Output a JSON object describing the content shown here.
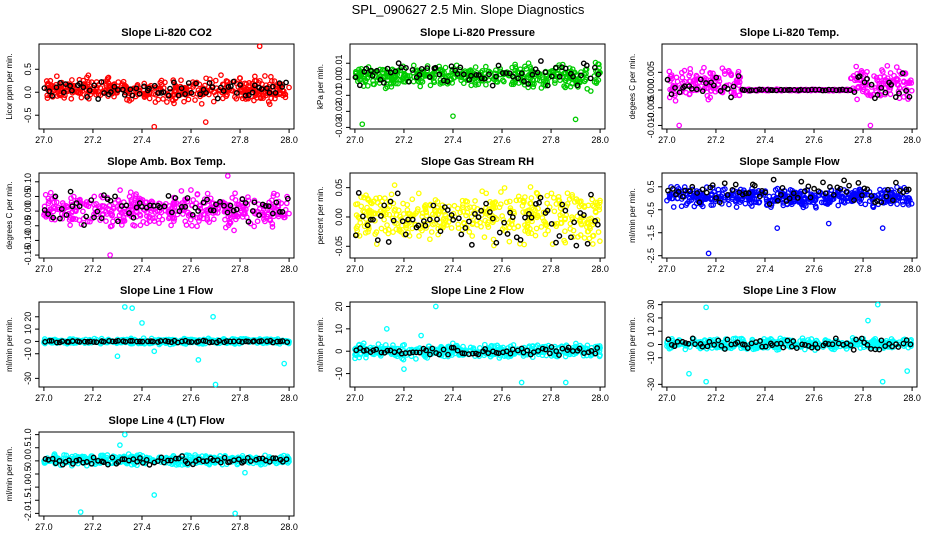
{
  "figure_title": "SPL_090627  2.5 Min. Slope Diagnostics",
  "colors": {
    "series_overlay": "#000000",
    "red": "#ff0000",
    "green": "#00cc00",
    "magenta": "#ff00ff",
    "yellow": "#ffff00",
    "blue": "#0000ff",
    "cyan": "#00ffff"
  },
  "chart_data": [
    {
      "type": "scatter",
      "title": "Slope Li-820 CO2",
      "ylabel": "Licor ppm per min.",
      "color": "#ff0000",
      "xlim": [
        26.98,
        28.02
      ],
      "ylim": [
        -0.8,
        1.05
      ],
      "xticks": [
        "27.0",
        "27.2",
        "27.4",
        "27.6",
        "27.8",
        "28.0"
      ],
      "yticks": [
        "-0.5",
        "0.0",
        "0.5"
      ],
      "ytick_values": [
        -0.5,
        0,
        0.5
      ],
      "band": [
        -0.3,
        0.4
      ],
      "overlay_band": [
        -0.2,
        0.3
      ],
      "outliers": [
        [
          27.45,
          -0.75
        ],
        [
          27.66,
          -0.65
        ],
        [
          27.88,
          1.0
        ]
      ]
    },
    {
      "type": "scatter",
      "title": "Slope Li-820 Pressure",
      "ylabel": "kPa per min.",
      "color": "#00cc00",
      "xlim": [
        26.98,
        28.02
      ],
      "ylim": [
        -0.031,
        0.022
      ],
      "xticks": [
        "27.0",
        "27.2",
        "27.4",
        "27.6",
        "27.8",
        "28.0"
      ],
      "yticks": [
        "-0.03",
        "-0.02",
        "-0.01",
        "0.00",
        "0.01"
      ],
      "ytick_values": [
        -0.03,
        -0.02,
        -0.01,
        0,
        0.01
      ],
      "band": [
        -0.008,
        0.012
      ],
      "overlay_band": [
        -0.005,
        0.012
      ],
      "outliers": [
        [
          27.03,
          -0.028
        ],
        [
          27.4,
          -0.023
        ],
        [
          27.9,
          -0.025
        ]
      ]
    },
    {
      "type": "scatter",
      "title": "Slope Li-820 Temp.",
      "ylabel": "degees C per min.",
      "color": "#ff00ff",
      "xlim": [
        26.98,
        28.02
      ],
      "ylim": [
        -0.011,
        0.013
      ],
      "xticks": [
        "27.0",
        "27.2",
        "27.4",
        "27.6",
        "27.8",
        "28.0"
      ],
      "yticks": [
        "-0.010",
        "-0.005",
        "0.000",
        "0.005"
      ],
      "ytick_values": [
        -0.01,
        -0.005,
        0,
        0.005
      ],
      "band": [
        -0.004,
        0.008
      ],
      "overlay_band": [
        -0.003,
        0.006
      ],
      "flat_range": [
        27.3,
        27.75
      ],
      "outliers": [
        [
          27.05,
          -0.01
        ],
        [
          27.83,
          -0.01
        ]
      ]
    },
    {
      "type": "scatter",
      "title": "Slope Amb. Box Temp.",
      "ylabel": "degrees C per min.",
      "color": "#ff00ff",
      "xlim": [
        26.98,
        28.02
      ],
      "ylim": [
        -0.16,
        0.13
      ],
      "xticks": [
        "27.0",
        "27.2",
        "27.4",
        "27.6",
        "27.8",
        "28.0"
      ],
      "yticks": [
        "-0.15",
        "-0.10",
        "-0.05",
        "0.00",
        "0.05",
        "0.10"
      ],
      "ytick_values": [
        -0.15,
        -0.1,
        -0.05,
        0,
        0.05,
        0.1
      ],
      "band": [
        -0.08,
        0.09
      ],
      "overlay_band": [
        -0.05,
        0.07
      ],
      "outliers": [
        [
          27.27,
          -0.15
        ],
        [
          27.75,
          0.12
        ]
      ]
    },
    {
      "type": "scatter",
      "title": "Slope Gas Stream RH",
      "ylabel": "percent per min.",
      "color": "#ffff00",
      "xlim": [
        26.98,
        28.02
      ],
      "ylim": [
        -0.07,
        0.075
      ],
      "xticks": [
        "27.0",
        "27.2",
        "27.4",
        "27.6",
        "27.8",
        "28.0"
      ],
      "yticks": [
        "-0.05",
        "0.00",
        "0.05"
      ],
      "ytick_values": [
        -0.05,
        0,
        0.05
      ],
      "band": [
        -0.06,
        0.065
      ],
      "overlay_band": [
        -0.055,
        0.045
      ],
      "outliers": []
    },
    {
      "type": "scatter",
      "title": "Slope Sample Flow",
      "ylabel": "ml/min per min.",
      "color": "#0000ff",
      "xlim": [
        26.98,
        28.02
      ],
      "ylim": [
        -2.6,
        1.1
      ],
      "xticks": [
        "27.0",
        "27.2",
        "27.4",
        "27.6",
        "27.8",
        "28.0"
      ],
      "yticks": [
        "-2.5",
        "-1.5",
        "-0.5",
        "0.5"
      ],
      "ytick_values": [
        -2.5,
        -1.5,
        -0.5,
        0.5
      ],
      "band": [
        -0.5,
        0.6
      ],
      "overlay_band": [
        -0.3,
        0.9
      ],
      "outliers": [
        [
          27.17,
          -2.4
        ],
        [
          27.45,
          -1.3
        ],
        [
          27.66,
          -1.1
        ],
        [
          27.88,
          -1.3
        ]
      ]
    },
    {
      "type": "scatter",
      "title": "Slope Line 1 Flow",
      "ylabel": "ml/min per min.",
      "color": "#00ffff",
      "xlim": [
        26.98,
        28.02
      ],
      "ylim": [
        -37,
        32
      ],
      "xticks": [
        "27.0",
        "27.2",
        "27.4",
        "27.6",
        "27.8",
        "28.0"
      ],
      "yticks": [
        "-30",
        "-10",
        "0",
        "10",
        "20"
      ],
      "ytick_values": [
        -30,
        -10,
        0,
        10,
        20
      ],
      "band": [
        -3,
        3
      ],
      "overlay_band": [
        -1,
        1
      ],
      "outliers": [
        [
          27.33,
          28
        ],
        [
          27.36,
          27
        ],
        [
          27.4,
          15
        ],
        [
          27.3,
          -12
        ],
        [
          27.63,
          -15
        ],
        [
          27.7,
          -35
        ],
        [
          27.69,
          20
        ],
        [
          27.45,
          -8
        ],
        [
          27.98,
          -18
        ]
      ]
    },
    {
      "type": "scatter",
      "title": "Slope Line 2 Flow",
      "ylabel": "ml/min per min.",
      "color": "#00ffff",
      "xlim": [
        26.98,
        28.02
      ],
      "ylim": [
        -16,
        22
      ],
      "xticks": [
        "27.0",
        "27.2",
        "27.4",
        "27.6",
        "27.8",
        "28.0"
      ],
      "yticks": [
        "-10",
        "0",
        "10",
        "20"
      ],
      "ytick_values": [
        -10,
        0,
        10,
        20
      ],
      "band": [
        -4,
        4
      ],
      "overlay_band": [
        -2,
        2
      ],
      "outliers": [
        [
          27.13,
          10
        ],
        [
          27.33,
          20
        ],
        [
          27.27,
          7
        ],
        [
          27.68,
          -14
        ],
        [
          27.86,
          -14
        ],
        [
          27.2,
          -8
        ]
      ]
    },
    {
      "type": "scatter",
      "title": "Slope Line 3 Flow",
      "ylabel": "ml/min per min.",
      "color": "#00ffff",
      "xlim": [
        26.98,
        28.02
      ],
      "ylim": [
        -32,
        32
      ],
      "xticks": [
        "27.0",
        "27.2",
        "27.4",
        "27.6",
        "27.8",
        "28.0"
      ],
      "yticks": [
        "-30",
        "-10",
        "0",
        "10",
        "20",
        "30"
      ],
      "ytick_values": [
        -30,
        -10,
        0,
        10,
        20,
        30
      ],
      "band": [
        -5,
        6
      ],
      "overlay_band": [
        -5,
        5
      ],
      "outliers": [
        [
          27.16,
          28
        ],
        [
          27.16,
          -28
        ],
        [
          27.09,
          -22
        ],
        [
          27.86,
          30
        ],
        [
          27.88,
          -28
        ],
        [
          27.98,
          -20
        ],
        [
          27.82,
          18
        ]
      ]
    },
    {
      "type": "scatter",
      "title": "Slope Line 4 (LT) Flow",
      "ylabel": "ml/min per min.",
      "color": "#00ffff",
      "xlim": [
        26.98,
        28.02
      ],
      "ylim": [
        -2.1,
        1.1
      ],
      "xticks": [
        "27.0",
        "27.2",
        "27.4",
        "27.6",
        "27.8",
        "28.0"
      ],
      "yticks": [
        "-2.0",
        "-1.5",
        "-1.0",
        "-0.5",
        "0.0",
        "0.5",
        "1.0"
      ],
      "ytick_values": [
        -2,
        -1.5,
        -1,
        -0.5,
        0,
        0.5,
        1
      ],
      "band": [
        -0.25,
        0.3
      ],
      "overlay_band": [
        -0.2,
        0.2
      ],
      "outliers": [
        [
          27.33,
          1.0
        ],
        [
          27.15,
          -1.95
        ],
        [
          27.78,
          -2.0
        ],
        [
          27.45,
          -1.3
        ],
        [
          27.82,
          -0.45
        ],
        [
          27.31,
          0.6
        ]
      ]
    }
  ]
}
